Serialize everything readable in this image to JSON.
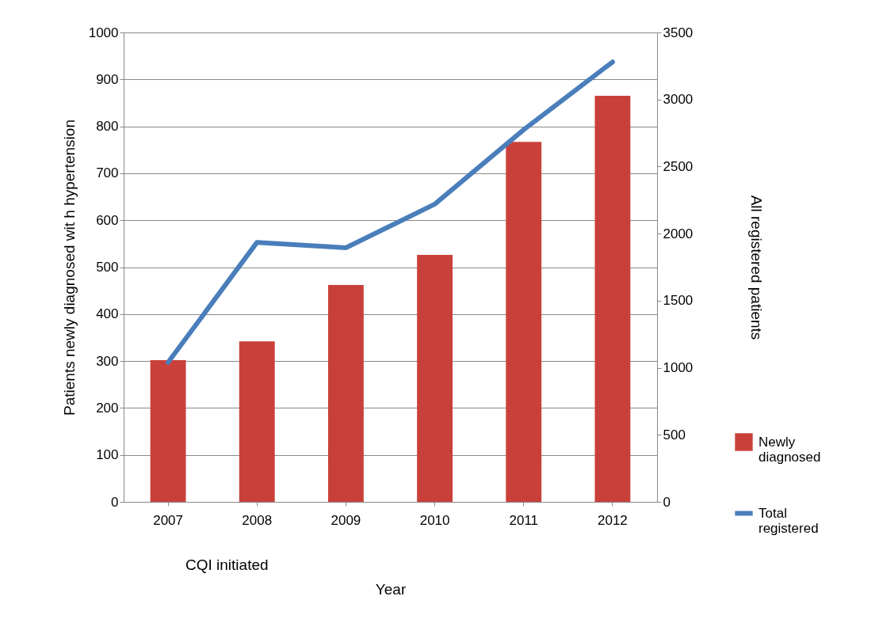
{
  "chart_data": {
    "type": "bar",
    "xlabel": "Year",
    "ylabel": "Patients newly diagnosed wit h hypertension",
    "y2label": "All registered patients",
    "categories": [
      "2007",
      "2008",
      "2009",
      "2010",
      "2011",
      "2012"
    ],
    "series": [
      {
        "name": "Newly diagnosed",
        "color": "#c9403a",
        "values": [
          302,
          342,
          462,
          526,
          767,
          865
        ]
      },
      {
        "name": "Total registered",
        "type": "line",
        "axis": "y2",
        "color": "#4a7ebb",
        "values": [
          1040,
          1935,
          1895,
          2220,
          2775,
          3280
        ]
      }
    ],
    "ylim": [
      0,
      1000
    ],
    "yticks": [
      0,
      100,
      200,
      300,
      400,
      500,
      600,
      700,
      800,
      900,
      1000
    ],
    "y2lim": [
      0,
      3500
    ],
    "y2ticks": [
      0,
      500,
      1000,
      1500,
      2000,
      2500,
      3000,
      3500
    ],
    "grid": "y",
    "legend": "right",
    "marker": "none",
    "line_style": "solid",
    "annotations": [
      "CQI initiated"
    ]
  }
}
